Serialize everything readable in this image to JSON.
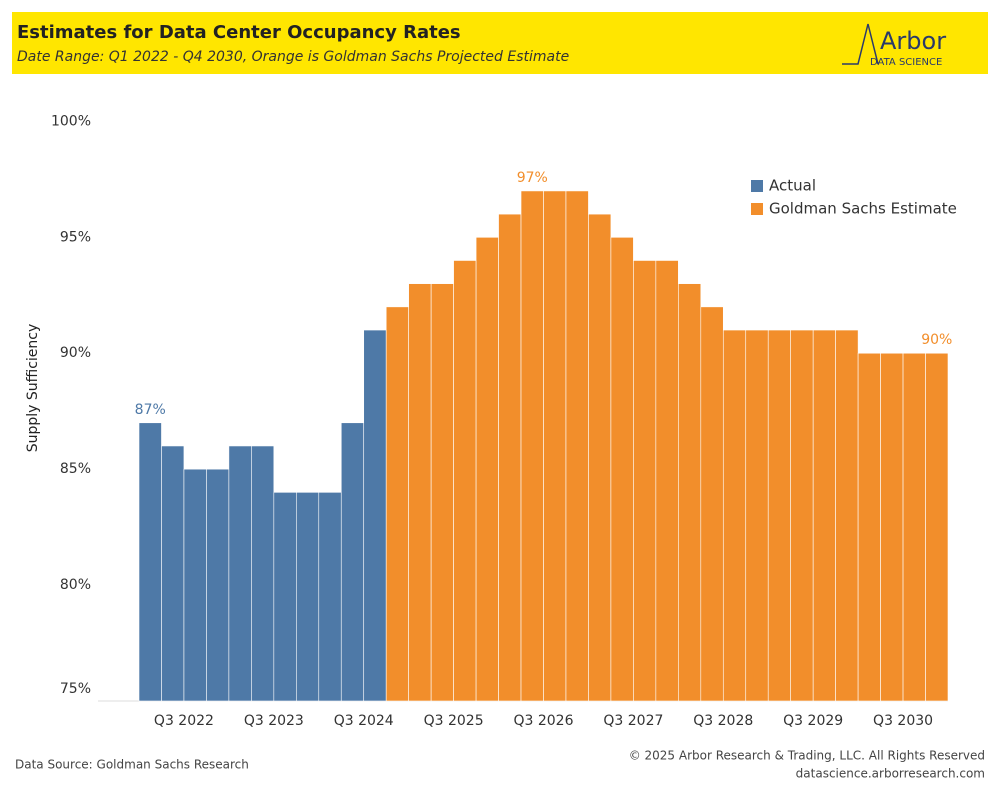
{
  "chart_data": {
    "type": "bar",
    "title": "Estimates for Data Center Occupancy Rates",
    "subtitle": "Date Range: Q1 2022 - Q4 2030, Orange is Goldman Sachs Projected Estimate",
    "logo": {
      "name": "Arbor",
      "tagline": "DATA SCIENCE"
    },
    "y_label": "Supply Sufficiency",
    "categories": [
      null,
      null,
      "Q3 2022",
      null,
      null,
      null,
      "Q3 2023",
      null,
      null,
      null,
      "Q3 2024",
      null,
      null,
      null,
      "Q3 2025",
      null,
      null,
      null,
      "Q3 2026",
      null,
      null,
      null,
      "Q3 2027",
      null,
      null,
      null,
      "Q3 2028",
      null,
      null,
      null,
      "Q3 2029",
      null,
      null,
      null,
      "Q3 2030",
      null
    ],
    "series": [
      {
        "name": "Actual",
        "color": "#4e79a7",
        "values": [
          87,
          86,
          85,
          85,
          86,
          86,
          84,
          84,
          84,
          87,
          91,
          null,
          null,
          null,
          null,
          null,
          null,
          null,
          null,
          null,
          null,
          null,
          null,
          null,
          null,
          null,
          null,
          null,
          null,
          null,
          null,
          null,
          null,
          null,
          null,
          null
        ],
        "value_labels": [
          "87%",
          null,
          null,
          null,
          null,
          null,
          null,
          null,
          null,
          null,
          null,
          null,
          null,
          null,
          null,
          null,
          null,
          null,
          null,
          null,
          null,
          null,
          null,
          null,
          null,
          null,
          null,
          null,
          null,
          null,
          null,
          null,
          null,
          null,
          null,
          null
        ]
      },
      {
        "name": "Goldman Sachs Estimate",
        "color": "#f28e2b",
        "values": [
          null,
          null,
          null,
          null,
          null,
          null,
          null,
          null,
          null,
          null,
          null,
          92,
          93,
          93,
          94,
          95,
          96,
          97,
          97,
          97,
          96,
          95,
          94,
          94,
          93,
          92,
          91,
          91,
          91,
          91,
          91,
          91,
          90,
          90,
          90,
          90
        ],
        "value_labels": [
          null,
          null,
          null,
          null,
          null,
          null,
          null,
          null,
          null,
          null,
          null,
          null,
          null,
          null,
          null,
          null,
          null,
          "97%",
          null,
          null,
          null,
          null,
          null,
          null,
          null,
          null,
          null,
          null,
          null,
          null,
          null,
          null,
          null,
          null,
          null,
          "90%"
        ]
      }
    ],
    "ylim": [
      75,
      102
    ],
    "yticks": [
      {
        "value": 75,
        "label": "75%"
      },
      {
        "value": 80,
        "label": "80%"
      },
      {
        "value": 85,
        "label": "85%"
      },
      {
        "value": 90,
        "label": "90%"
      },
      {
        "value": 95,
        "label": "95%"
      },
      {
        "value": 100,
        "label": "100%"
      }
    ],
    "legend": "top-right",
    "source": "Data Source: Goldman Sachs Research",
    "copyright": "© 2025 Arbor Research & Trading, LLC. All Rights Reserved",
    "website": "datascience.arborresearch.com"
  }
}
